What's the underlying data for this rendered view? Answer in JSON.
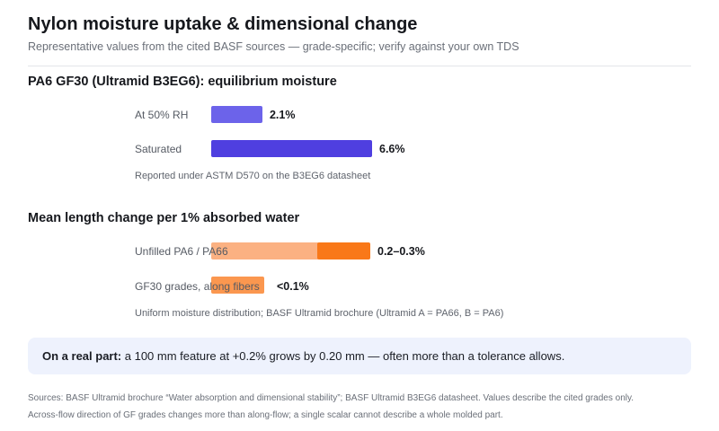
{
  "title": "Nylon moisture uptake & dimensional change",
  "subtitle": "Representative values from the cited BASF sources — grade-specific; verify against your own TDS",
  "chart_data": [
    {
      "type": "bar",
      "orientation": "horizontal",
      "title": "PA6 GF30 (Ultramid B3EG6): equilibrium moisture",
      "unit": "%",
      "categories": [
        "At 50% RH",
        "Saturated"
      ],
      "values": [
        2.1,
        6.6
      ],
      "value_labels": [
        "2.1%",
        "6.6%"
      ],
      "colors": [
        "#6c63ea",
        "#4f3fe0"
      ],
      "note": "Reported under ASTM D570 on the B3EG6 datasheet"
    },
    {
      "type": "bar",
      "orientation": "horizontal",
      "title": "Mean length change per 1% absorbed water",
      "unit": "%",
      "categories": [
        "Unfilled PA6 / PA66",
        "GF30 grades, along fibers"
      ],
      "ranges": [
        [
          0.2,
          0.3
        ],
        [
          0,
          0.1
        ]
      ],
      "value_labels": [
        "0.2–0.3%",
        "<0.1%"
      ],
      "colors": {
        "range_low": "#fbb182",
        "range_high": "#f97818",
        "upper_bound": "#fb8c3c"
      },
      "note": "Uniform moisture distribution; BASF Ultramid brochure (Ultramid A = PA66, B = PA6)"
    }
  ],
  "callout": {
    "lead": "On a real part:",
    "text": " a 100 mm feature at +0.2% grows by 0.20 mm — often more than a tolerance allows."
  },
  "footer": {
    "line1": "Sources: BASF Ultramid brochure “Water absorption and dimensional stability”; BASF Ultramid B3EG6 datasheet. Values describe the cited grades only.",
    "line2": "Across-flow direction of GF grades changes more than along-flow; a single scalar cannot describe a whole molded part."
  }
}
